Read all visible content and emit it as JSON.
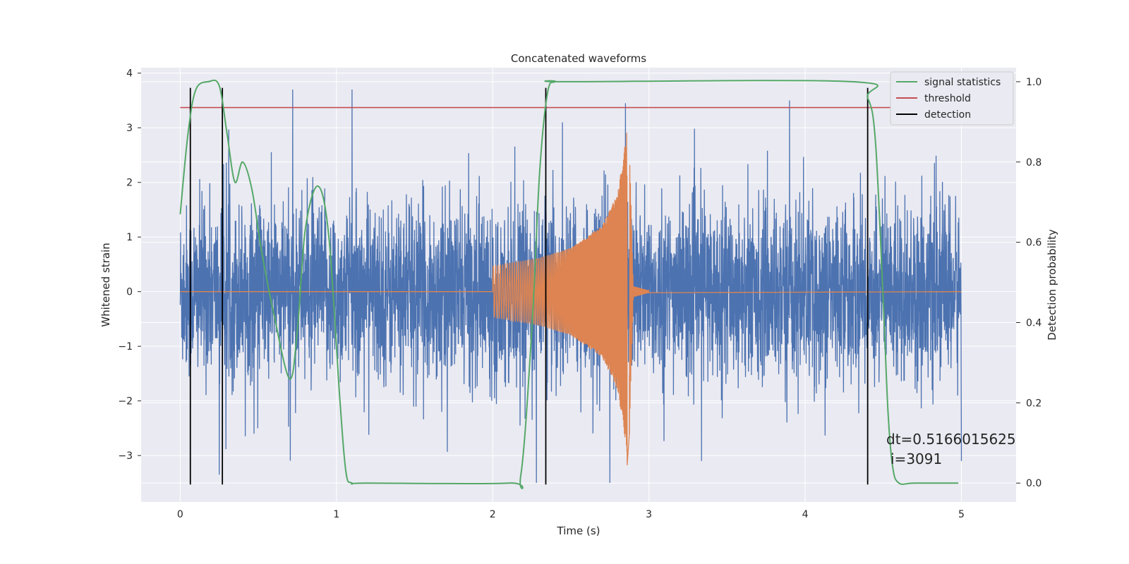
{
  "chart_data": {
    "type": "line",
    "title": "Concatenated waveforms",
    "xlabel": "Time (s)",
    "ylabel": "Whitened strain",
    "ylabel_right": "Detection probability",
    "xlim": [
      -0.25,
      5.35
    ],
    "ylim": [
      -3.85,
      4.1
    ],
    "ylim_right": [
      -0.047,
      1.035
    ],
    "x_ticks": [
      0,
      1,
      2,
      3,
      4,
      5
    ],
    "y_ticks": [
      -3,
      -2,
      -1,
      0,
      1,
      2,
      3,
      4
    ],
    "y_ticks_right": [
      0.0,
      0.2,
      0.4,
      0.6,
      0.8,
      1.0
    ],
    "x_tick_labels": [
      "0",
      "1",
      "2",
      "3",
      "4",
      "5"
    ],
    "y_tick_labels": [
      "−3",
      "−2",
      "−1",
      "0",
      "1",
      "2",
      "3",
      "4"
    ],
    "y_tick_labels_right": [
      "0.0",
      "0.2",
      "0.4",
      "0.6",
      "0.8",
      "1.0"
    ],
    "grid": true,
    "legend_position": "top-right",
    "colors": {
      "background": "#eaeaf2",
      "grid": "#ffffff",
      "noise": "#4c72b0",
      "chirp": "#dd8452",
      "signal": "#55a868",
      "threshold": "#c44e52",
      "detection": "#000000"
    },
    "series": [
      {
        "name": "",
        "kind": "strain-noise",
        "axis": "left",
        "x_range": [
          0,
          5
        ],
        "typical_envelope": [
          -1.9,
          2.3
        ],
        "peaks": [
          [
            0.72,
            3.7
          ],
          [
            1.1,
            3.7
          ],
          [
            2.85,
            3.45
          ],
          [
            3.9,
            3.5
          ],
          [
            0.25,
            -3.35
          ],
          [
            2.75,
            -3.5
          ],
          [
            2.28,
            -3.5
          ]
        ]
      },
      {
        "name": "",
        "kind": "chirp",
        "axis": "left",
        "x": [
          0,
          2.0,
          2.3,
          2.5,
          2.7,
          2.8,
          2.85,
          2.87,
          2.9,
          3.0,
          5.0
        ],
        "amplitude": [
          0,
          0.47,
          0.62,
          0.8,
          1.2,
          1.8,
          2.75,
          3.2,
          0.1,
          0.02,
          0
        ]
      },
      {
        "name": "signal statistics",
        "axis": "right",
        "x": [
          0.0,
          0.05,
          0.1,
          0.18,
          0.25,
          0.3,
          0.35,
          0.4,
          0.46,
          0.52,
          0.6,
          0.7,
          0.75,
          0.8,
          0.88,
          0.95,
          1.02,
          1.06,
          1.1,
          1.2,
          2.1,
          2.18,
          2.25,
          2.3,
          2.35,
          2.4,
          2.5,
          4.3,
          4.4,
          4.45,
          4.5,
          4.53,
          4.56,
          4.6,
          4.7,
          4.98
        ],
        "y": [
          0.67,
          0.87,
          0.98,
          1.0,
          0.99,
          0.87,
          0.75,
          0.8,
          0.73,
          0.58,
          0.42,
          0.26,
          0.38,
          0.63,
          0.74,
          0.62,
          0.22,
          0.03,
          0.0,
          0.0,
          0.0,
          0.02,
          0.38,
          0.77,
          0.97,
          1.0,
          1.0,
          1.0,
          0.96,
          0.85,
          0.45,
          0.18,
          0.04,
          0.0,
          0.0,
          0.0
        ]
      },
      {
        "name": "threshold",
        "axis": "left",
        "x": [
          0.0,
          5.0
        ],
        "y": [
          3.37,
          3.37
        ]
      },
      {
        "name": "detection",
        "axis": "left",
        "kind": "vertical-lines",
        "x": [
          0.065,
          0.27,
          2.34,
          4.4
        ],
        "y_range": [
          -3.53,
          3.73
        ]
      }
    ],
    "annotations": [
      "dt=0.5166015625",
      "i=3091"
    ]
  }
}
